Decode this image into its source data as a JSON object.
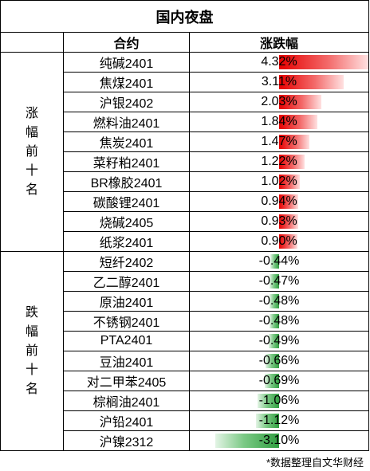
{
  "title": "国内夜盘",
  "headers": {
    "contract": "合约",
    "change": "涨跌幅"
  },
  "groups": [
    {
      "label": [
        "涨",
        "幅",
        "前",
        "十",
        "名"
      ],
      "direction": "up"
    },
    {
      "label": [
        "跌",
        "幅",
        "前",
        "十",
        "名"
      ],
      "direction": "down"
    }
  ],
  "gainers": [
    {
      "name": "纯碱2401",
      "change": "4.32%",
      "value": 4.32
    },
    {
      "name": "焦煤2401",
      "change": "3.11%",
      "value": 3.11
    },
    {
      "name": "沪银2402",
      "change": "2.03%",
      "value": 2.03
    },
    {
      "name": "燃料油2401",
      "change": "1.84%",
      "value": 1.84
    },
    {
      "name": "焦炭2401",
      "change": "1.47%",
      "value": 1.47
    },
    {
      "name": "菜籽粕2401",
      "change": "1.22%",
      "value": 1.22
    },
    {
      "name": "BR橡胶2401",
      "change": "1.02%",
      "value": 1.02
    },
    {
      "name": "碳酸锂2401",
      "change": "0.94%",
      "value": 0.94
    },
    {
      "name": "烧碱2405",
      "change": "0.93%",
      "value": 0.93
    },
    {
      "name": "纸浆2401",
      "change": "0.90%",
      "value": 0.9
    }
  ],
  "losers": [
    {
      "name": "短纤2402",
      "change": "-0.44%",
      "value": -0.44
    },
    {
      "name": "乙二醇2401",
      "change": "-0.47%",
      "value": -0.47
    },
    {
      "name": "原油2401",
      "change": "-0.48%",
      "value": -0.48
    },
    {
      "name": "不锈钢2401",
      "change": "-0.48%",
      "value": -0.48
    },
    {
      "name": "PTA2401",
      "change": "-0.49%",
      "value": -0.49
    },
    {
      "name": "豆油2401",
      "change": "-0.66%",
      "value": -0.66
    },
    {
      "name": "对二甲苯2405",
      "change": "-0.69%",
      "value": -0.69
    },
    {
      "name": "棕榈油2401",
      "change": "-1.06%",
      "value": -1.06
    },
    {
      "name": "沪铅2401",
      "change": "-1.12%",
      "value": -1.12
    },
    {
      "name": "沪镍2312",
      "change": "-3.10%",
      "value": -3.1
    }
  ],
  "colors": {
    "up": "#e60000",
    "down": "#2f9e3f"
  },
  "footnote": "*数据整理自文华财经"
}
